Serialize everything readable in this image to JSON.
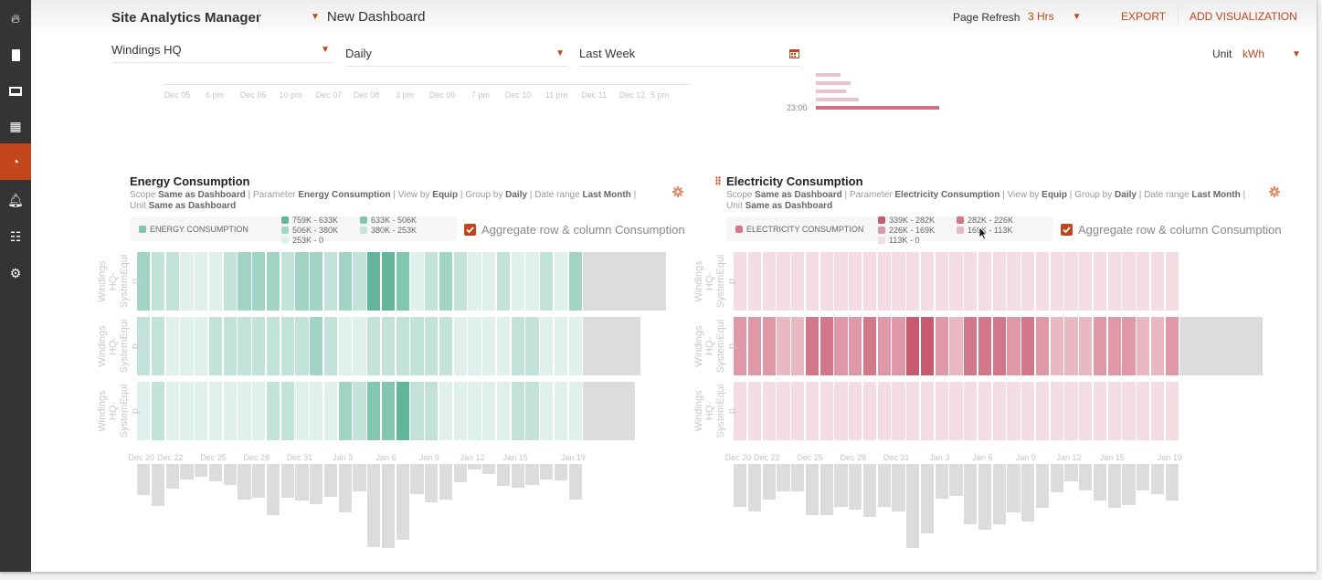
{
  "app": {
    "title": "Site Analytics Manager",
    "dashboard": "New Dashboard"
  },
  "header": {
    "page_refresh_label": "Page Refresh",
    "page_refresh_value": "3 Hrs",
    "export": "EXPORT",
    "add_visualization": "ADD VISUALIZATION"
  },
  "sidebar": {
    "items": [
      {
        "icon": "flame-icon"
      },
      {
        "icon": "building-icon"
      },
      {
        "icon": "laptop-icon"
      },
      {
        "icon": "dashboard-grid-icon"
      },
      {
        "icon": "pie-chart-icon",
        "active": true
      },
      {
        "icon": "bell-icon"
      },
      {
        "icon": "sitemap-icon"
      },
      {
        "icon": "gears-icon"
      }
    ]
  },
  "filters": {
    "site": "Windings HQ",
    "interval": "Daily",
    "range": "Last Week",
    "unit_label": "Unit",
    "unit_value": "kWh"
  },
  "colors": {
    "accent": "#c0451c",
    "sidebar": "#343434",
    "sidebar_active": "#c4461c",
    "green": [
      "#e0f0ec",
      "#c3e3da",
      "#a2d4c5",
      "#82c5b0",
      "#62b59b"
    ],
    "pink": [
      "#f3dde2",
      "#e8b9c3",
      "#de98a7",
      "#d3788b",
      "#c85a70"
    ],
    "aggregate": "#dcdcdc"
  },
  "timeline": {
    "ticks": [
      "Dec 05",
      "6 pm",
      "Dec 06",
      "10 pm",
      "Dec 07",
      "Dec 08",
      "3 pm",
      "Dec 09",
      "7 pm",
      "Dec 10",
      "11 pm",
      "Dec 11",
      "Dec 12",
      "5 pm"
    ],
    "hour_label": "23:00"
  },
  "cards": [
    {
      "title": "Energy Consumption",
      "meta": {
        "scope_l": "Scope",
        "scope": "Same as Dashboard",
        "param_l": "Parameter",
        "param": "Energy Consumption",
        "view_l": "View by",
        "view": "Equip",
        "group_l": "Group by",
        "group": "Daily",
        "range_l": "Date range",
        "range": "Last Month",
        "unit_l": "Unit",
        "unit": "Same as Dashboard"
      },
      "legend_title": "ENERGY CONSUMPTION",
      "legend": [
        "759K - 633K",
        "633K - 506K",
        "506K - 380K",
        "380K - 253K",
        "253K - 0"
      ],
      "aggregate_label": "Aggregate row & column Consumption",
      "aggregate_checked": true,
      "palette": "green",
      "row_labels": [
        "Windings HQ-SystemEquip",
        "Windings HQ-SystemEquip",
        "Windings HQ-SystemEquip"
      ],
      "x_ticks": [
        {
          "label": "Dec 20",
          "col": 0
        },
        {
          "label": "Dec 22",
          "col": 2
        },
        {
          "label": "Dec 25",
          "col": 5
        },
        {
          "label": "Dec 28",
          "col": 8
        },
        {
          "label": "Dec 31",
          "col": 11
        },
        {
          "label": "Jan 3",
          "col": 14
        },
        {
          "label": "Jan 6",
          "col": 17
        },
        {
          "label": "Jan 9",
          "col": 20
        },
        {
          "label": "Jan 12",
          "col": 23
        },
        {
          "label": "Jan 15",
          "col": 26
        },
        {
          "label": "Jan 19",
          "col": 30
        }
      ],
      "levels": [
        [
          2,
          1,
          1,
          0,
          0,
          0,
          1,
          2,
          2,
          2,
          1,
          2,
          2,
          1,
          2,
          1,
          4,
          4,
          3,
          0,
          1,
          2,
          1,
          0,
          0,
          1,
          0,
          0,
          1,
          0,
          2
        ],
        [
          1,
          1,
          0,
          0,
          0,
          1,
          1,
          1,
          1,
          1,
          1,
          1,
          2,
          1,
          0,
          0,
          1,
          1,
          1,
          1,
          1,
          1,
          0,
          0,
          0,
          0,
          1,
          1,
          0,
          0,
          0
        ],
        [
          0,
          1,
          0,
          0,
          0,
          0,
          0,
          0,
          0,
          1,
          1,
          0,
          0,
          0,
          2,
          1,
          3,
          3,
          4,
          1,
          1,
          0,
          0,
          0,
          0,
          0,
          1,
          1,
          0,
          0,
          0
        ]
      ],
      "row_totals_relative": [
        100,
        69,
        62
      ],
      "column_totals_relative": [
        37,
        50,
        29,
        18,
        15,
        21,
        25,
        42,
        40,
        61,
        40,
        43,
        48,
        39,
        58,
        33,
        99,
        100,
        90,
        36,
        46,
        42,
        22,
        7,
        12,
        26,
        28,
        25,
        19,
        20,
        42
      ]
    },
    {
      "title": "Electricity Consumption",
      "meta": {
        "scope_l": "Scope",
        "scope": "Same as Dashboard",
        "param_l": "Parameter",
        "param": "Electricity Consumption",
        "view_l": "View by",
        "view": "Equip",
        "group_l": "Group by",
        "group": "Daily",
        "range_l": "Date range",
        "range": "Last Month",
        "unit_l": "Unit",
        "unit": "Same as Dashboard"
      },
      "legend_title": "ELECTRICITY CONSUMPTION",
      "legend": [
        "339K - 282K",
        "282K - 226K",
        "226K - 169K",
        "169K - 113K",
        "113K - 0"
      ],
      "aggregate_label": "Aggregate row & column Consumption",
      "aggregate_checked": true,
      "palette": "pink",
      "row_labels": [
        "Windings HQ-SystemEquip",
        "Windings HQ-SystemEquip",
        "Windings HQ-SystemEquip"
      ],
      "x_ticks": [
        {
          "label": "Dec 20",
          "col": 0
        },
        {
          "label": "Dec 22",
          "col": 2
        },
        {
          "label": "Dec 25",
          "col": 5
        },
        {
          "label": "Dec 28",
          "col": 8
        },
        {
          "label": "Dec 31",
          "col": 11
        },
        {
          "label": "Jan 3",
          "col": 14
        },
        {
          "label": "Jan 6",
          "col": 17
        },
        {
          "label": "Jan 9",
          "col": 20
        },
        {
          "label": "Jan 12",
          "col": 23
        },
        {
          "label": "Jan 15",
          "col": 26
        },
        {
          "label": "Jan 19",
          "col": 30
        }
      ],
      "levels": [
        [
          0,
          0,
          0,
          0,
          0,
          0,
          0,
          0,
          0,
          0,
          0,
          0,
          0,
          0,
          0,
          0,
          0,
          0,
          0,
          0,
          0,
          0,
          0,
          0,
          0,
          0,
          0,
          0,
          0,
          0,
          0
        ],
        [
          2,
          2,
          2,
          1,
          1,
          3,
          3,
          2,
          2,
          3,
          2,
          2,
          4,
          4,
          2,
          1,
          3,
          3,
          3,
          2,
          3,
          2,
          1,
          1,
          1,
          2,
          2,
          2,
          1,
          1,
          2
        ],
        [
          0,
          0,
          0,
          0,
          0,
          0,
          0,
          0,
          0,
          0,
          0,
          0,
          0,
          0,
          0,
          0,
          0,
          0,
          0,
          0,
          0,
          0,
          0,
          0,
          0,
          0,
          0,
          0,
          0,
          0,
          0
        ]
      ],
      "row_totals_relative": [
        null,
        100,
        null
      ],
      "column_totals_relative": [
        51,
        56,
        42,
        33,
        33,
        61,
        61,
        51,
        54,
        63,
        51,
        57,
        100,
        83,
        41,
        38,
        72,
        78,
        72,
        58,
        68,
        52,
        34,
        21,
        32,
        44,
        52,
        49,
        31,
        36,
        43
      ]
    }
  ]
}
